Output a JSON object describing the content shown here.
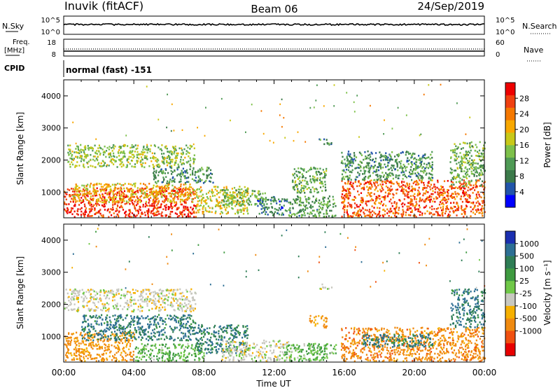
{
  "header": {
    "station": "Inuvik (fitACF)",
    "beam": "Beam 06",
    "date": "24/Sep/2019"
  },
  "mini_panels": {
    "nsky": {
      "left_label": "N.Sky",
      "left_ticks": [
        "10^5",
        "10^0"
      ],
      "right_label": "N.Search",
      "right_ticks": [
        "10^5",
        "10^0"
      ]
    },
    "freq": {
      "left_label_1": "Freq.",
      "left_label_2": "[MHz]",
      "left_ticks": [
        "18",
        "8"
      ],
      "right_label": "Nave",
      "right_ticks": [
        "60",
        "0"
      ]
    },
    "cpid": {
      "label": "CPID",
      "value": "normal (fast) -151"
    }
  },
  "colors": {
    "power_scale": [
      "#0000ff",
      "#2255aa",
      "#3c7a4a",
      "#4f9a55",
      "#7dc04a",
      "#c8c818",
      "#f8a800",
      "#f57800",
      "#f04010",
      "#ee0000"
    ],
    "velocity_scale": [
      "#1b2fb0",
      "#2d6f94",
      "#2e7d55",
      "#3e9a40",
      "#70c848",
      "#c8c8c0",
      "#f6b000",
      "#f08a10",
      "#f05010",
      "#e80000"
    ]
  },
  "chart_data": [
    {
      "type": "heatmap",
      "name": "power",
      "ylabel": "Slant Range [km]",
      "ylim": [
        200,
        4500
      ],
      "yticks": [
        "1000",
        "2000",
        "3000",
        "4000"
      ],
      "xticks": [
        "00:00",
        "04:00",
        "08:00",
        "12:00",
        "16:00",
        "20:00",
        "00:00"
      ],
      "xlim_hours": [
        0,
        24
      ],
      "colorbar": {
        "label": "Power [dB]",
        "ticks": [
          "4",
          "8",
          "12",
          "16",
          "20",
          "24",
          "28"
        ],
        "range": [
          0,
          32
        ]
      },
      "regions": [
        {
          "t": [
            0.0,
            7.5
          ],
          "r": [
            250,
            1150
          ],
          "v": 28
        },
        {
          "t": [
            0.5,
            7.5
          ],
          "r": [
            700,
            1300
          ],
          "v": 20
        },
        {
          "t": [
            0.2,
            7.5
          ],
          "r": [
            1800,
            2500
          ],
          "v": 15
        },
        {
          "t": [
            5.0,
            8.5
          ],
          "r": [
            1300,
            1800
          ],
          "v": 10
        },
        {
          "t": [
            7.5,
            10.5
          ],
          "r": [
            350,
            1200
          ],
          "v": 18
        },
        {
          "t": [
            9.0,
            11.5
          ],
          "r": [
            600,
            1100
          ],
          "v": 13
        },
        {
          "t": [
            11.0,
            12.5
          ],
          "r": [
            300,
            900
          ],
          "v": 8
        },
        {
          "t": [
            12.5,
            15.5
          ],
          "r": [
            250,
            900
          ],
          "v": 11
        },
        {
          "t": [
            14.5,
            15.3
          ],
          "r": [
            2500,
            2700
          ],
          "v": 9
        },
        {
          "t": [
            13.0,
            15.0
          ],
          "r": [
            1000,
            1800
          ],
          "v": 12
        },
        {
          "t": [
            15.8,
            24.0
          ],
          "r": [
            250,
            1400
          ],
          "v": 26
        },
        {
          "t": [
            15.8,
            21.0
          ],
          "r": [
            1400,
            2300
          ],
          "v": 10
        },
        {
          "t": [
            22.0,
            24.0
          ],
          "r": [
            1200,
            2600
          ],
          "v": 13
        }
      ]
    },
    {
      "type": "heatmap",
      "name": "velocity",
      "ylabel": "Slant Range [km]",
      "ylim": [
        200,
        4500
      ],
      "yticks": [
        "1000",
        "2000",
        "3000",
        "4000"
      ],
      "xticks": [
        "00:00",
        "04:00",
        "08:00",
        "12:00",
        "16:00",
        "20:00",
        "00:00"
      ],
      "xlabel": "Time UT",
      "xlim_hours": [
        0,
        24
      ],
      "colorbar": {
        "label": "Velocity [m s⁻¹]",
        "ticks": [
          "1000",
          "500",
          "100",
          "25",
          "-25",
          "-100",
          "-500",
          "-1000"
        ],
        "range": [
          -1000,
          1000
        ]
      },
      "regions": [
        {
          "t": [
            0.0,
            4.0
          ],
          "r": [
            250,
            1150
          ],
          "v": -150
        },
        {
          "t": [
            0.0,
            7.5
          ],
          "r": [
            1800,
            2500
          ],
          "v": 0
        },
        {
          "t": [
            1.0,
            7.5
          ],
          "r": [
            900,
            1700
          ],
          "v": 300
        },
        {
          "t": [
            4.0,
            8.0
          ],
          "r": [
            250,
            800
          ],
          "v": 60
        },
        {
          "t": [
            7.5,
            10.5
          ],
          "r": [
            500,
            1400
          ],
          "v": 300
        },
        {
          "t": [
            9.0,
            13.0
          ],
          "r": [
            250,
            900
          ],
          "v": 0
        },
        {
          "t": [
            12.5,
            15.5
          ],
          "r": [
            250,
            800
          ],
          "v": 60
        },
        {
          "t": [
            14.0,
            15.0
          ],
          "r": [
            1300,
            1700
          ],
          "v": -120
        },
        {
          "t": [
            14.5,
            15.3
          ],
          "r": [
            2500,
            2650
          ],
          "v": 0
        },
        {
          "t": [
            15.8,
            24.0
          ],
          "r": [
            250,
            1300
          ],
          "v": -200
        },
        {
          "t": [
            17.0,
            21.0
          ],
          "r": [
            700,
            1100
          ],
          "v": 300
        },
        {
          "t": [
            22.0,
            24.0
          ],
          "r": [
            1300,
            2500
          ],
          "v": 350
        }
      ]
    }
  ]
}
